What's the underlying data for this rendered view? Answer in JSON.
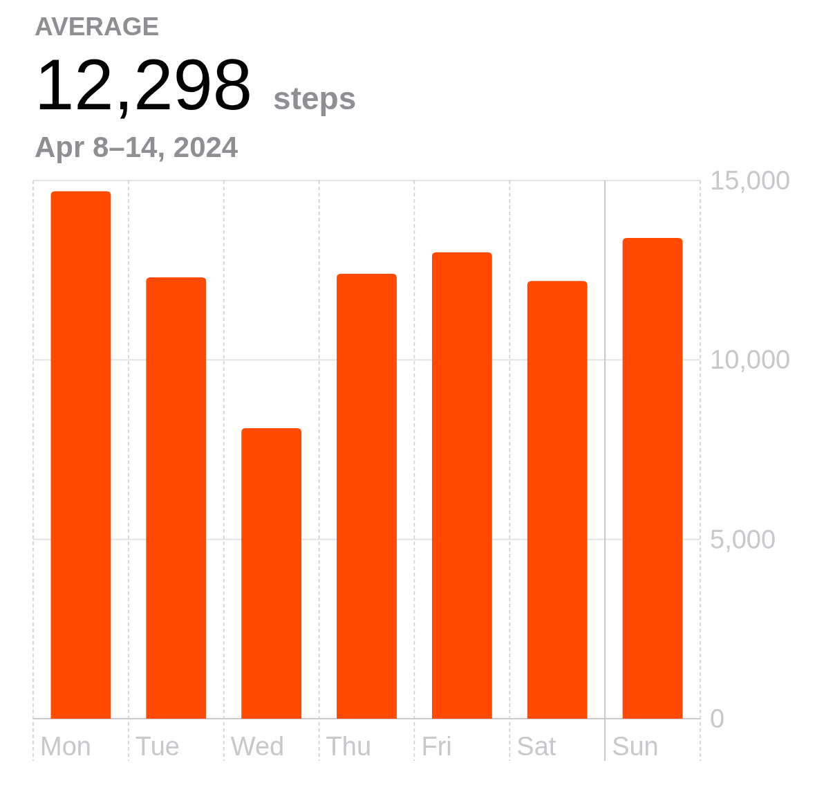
{
  "chart_data": {
    "type": "bar",
    "title": "AVERAGE",
    "subtitle": "Apr 8–14, 2024",
    "annotations": [
      "12,298",
      "steps"
    ],
    "categories": [
      "Mon",
      "Tue",
      "Wed",
      "Thu",
      "Fri",
      "Sat",
      "Sun"
    ],
    "values": [
      14700,
      12300,
      8100,
      12400,
      13000,
      12200,
      13400
    ],
    "color": "#ff4a00",
    "ylim": [
      0,
      15000
    ],
    "yticks": [
      0,
      {
        "value": 5000,
        "label": "5,000"
      },
      {
        "value": 10000,
        "label": "10,000"
      },
      {
        "value": 15000,
        "label": "15,000"
      }
    ],
    "grid": true,
    "ref_lines": [
      {
        "axis": "x",
        "value": "Sun",
        "color": "#c7c7cc"
      }
    ]
  }
}
